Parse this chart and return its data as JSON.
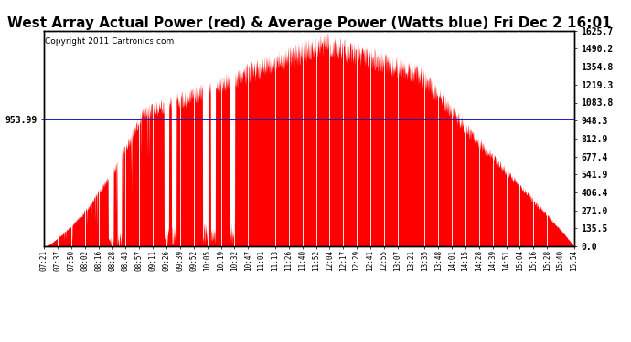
{
  "title": "West Array Actual Power (red) & Average Power (Watts blue) Fri Dec 2 16:01",
  "copyright": "Copyright 2011 Cartronics.com",
  "avg_power": 953.99,
  "y_max": 1625.7,
  "y_min": 0.0,
  "y_ticks_right": [
    1625.7,
    1490.2,
    1354.8,
    1219.3,
    1083.8,
    948.3,
    812.9,
    677.4,
    541.9,
    406.4,
    271.0,
    135.5,
    0.0
  ],
  "left_label": "953.99",
  "bg_color": "#ffffff",
  "fill_color": "#ff0000",
  "line_color": "#0000bb",
  "grid_color": "#aaaaaa",
  "title_fontsize": 11,
  "copyright_fontsize": 6.5,
  "x_labels": [
    "07:21",
    "07:37",
    "07:50",
    "08:02",
    "08:16",
    "08:28",
    "08:43",
    "08:57",
    "09:11",
    "09:26",
    "09:39",
    "09:52",
    "10:05",
    "10:19",
    "10:32",
    "10:47",
    "11:01",
    "11:13",
    "11:26",
    "11:40",
    "11:52",
    "12:04",
    "12:17",
    "12:29",
    "12:41",
    "12:55",
    "13:07",
    "13:21",
    "13:35",
    "13:48",
    "14:01",
    "14:15",
    "14:28",
    "14:39",
    "14:51",
    "15:04",
    "15:16",
    "15:28",
    "15:40",
    "15:54"
  ]
}
